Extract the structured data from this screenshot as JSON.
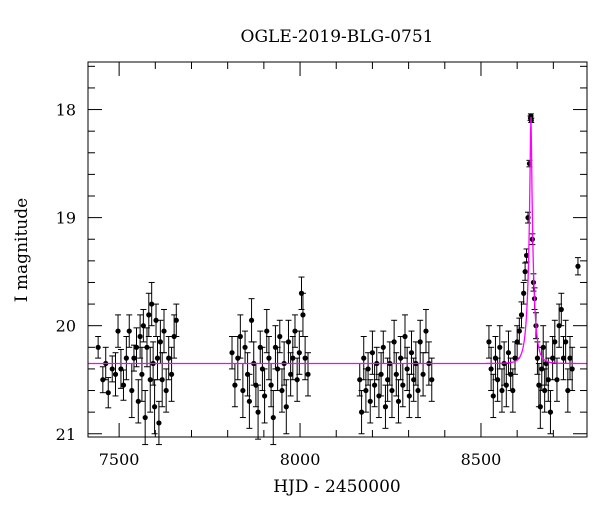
{
  "chart_data": {
    "type": "scatter",
    "title": "OGLE-2019-BLG-0751",
    "xlabel": "HJD - 2450000",
    "ylabel": "I magnitude",
    "xlim": [
      7414,
      8793
    ],
    "ylim": [
      21.03,
      17.56
    ],
    "y_inverted": true,
    "grid": false,
    "xticks": [
      7500,
      8000,
      8500
    ],
    "xticks_labels": [
      "7500",
      "8000",
      "8500"
    ],
    "yticks": [
      18,
      19,
      20,
      21
    ],
    "yticks_labels": [
      "18",
      "19",
      "20",
      "21"
    ],
    "x_minor_step": 100,
    "y_minor_step": 0.2,
    "colors": {
      "points": "#000000",
      "model": "#ff00ff"
    },
    "model": {
      "name": "microlensing fit",
      "t0": 8638,
      "u0": 0.122,
      "tE": 15,
      "baseline": 20.35
    },
    "points": [
      [
        7442,
        20.2,
        0.1
      ],
      [
        7455,
        20.5,
        0.12
      ],
      [
        7463,
        20.35,
        0.15
      ],
      [
        7470,
        20.62,
        0.14
      ],
      [
        7481,
        20.4,
        0.12
      ],
      [
        7490,
        20.45,
        0.2
      ],
      [
        7497,
        20.05,
        0.15
      ],
      [
        7505,
        20.4,
        0.18
      ],
      [
        7512,
        20.55,
        0.14
      ],
      [
        7520,
        20.3,
        0.2
      ],
      [
        7528,
        20.05,
        0.15
      ],
      [
        7535,
        20.6,
        0.25
      ],
      [
        7541,
        20.3,
        0.12
      ],
      [
        7548,
        20.2,
        0.18
      ],
      [
        7553,
        20.7,
        0.2
      ],
      [
        7558,
        20.1,
        0.2
      ],
      [
        7563,
        20.45,
        0.25
      ],
      [
        7567,
        20.0,
        0.15
      ],
      [
        7572,
        20.85,
        0.25
      ],
      [
        7577,
        20.2,
        0.18
      ],
      [
        7582,
        19.9,
        0.2
      ],
      [
        7586,
        20.5,
        0.3
      ],
      [
        7590,
        19.8,
        0.2
      ],
      [
        7594,
        20.35,
        0.2
      ],
      [
        7598,
        20.75,
        0.25
      ],
      [
        7602,
        19.95,
        0.15
      ],
      [
        7606,
        20.3,
        0.2
      ],
      [
        7610,
        20.9,
        0.2
      ],
      [
        7614,
        20.15,
        0.2
      ],
      [
        7619,
        20.5,
        0.25
      ],
      [
        7624,
        20.05,
        0.2
      ],
      [
        7630,
        20.6,
        0.2
      ],
      [
        7637,
        20.3,
        0.2
      ],
      [
        7645,
        20.45,
        0.25
      ],
      [
        7652,
        20.1,
        0.2
      ],
      [
        7658,
        19.95,
        0.15
      ],
      [
        7812,
        20.25,
        0.15
      ],
      [
        7820,
        20.55,
        0.2
      ],
      [
        7828,
        20.3,
        0.2
      ],
      [
        7835,
        20.1,
        0.2
      ],
      [
        7842,
        20.6,
        0.25
      ],
      [
        7848,
        20.2,
        0.15
      ],
      [
        7855,
        20.45,
        0.2
      ],
      [
        7860,
        20.7,
        0.25
      ],
      [
        7866,
        19.95,
        0.2
      ],
      [
        7872,
        20.35,
        0.2
      ],
      [
        7878,
        20.55,
        0.2
      ],
      [
        7884,
        20.8,
        0.25
      ],
      [
        7890,
        20.2,
        0.15
      ],
      [
        7896,
        20.4,
        0.2
      ],
      [
        7902,
        20.65,
        0.25
      ],
      [
        7908,
        20.05,
        0.2
      ],
      [
        7914,
        20.3,
        0.2
      ],
      [
        7920,
        20.55,
        0.2
      ],
      [
        7926,
        20.85,
        0.25
      ],
      [
        7932,
        20.2,
        0.2
      ],
      [
        7938,
        20.4,
        0.2
      ],
      [
        7944,
        20.1,
        0.15
      ],
      [
        7950,
        20.6,
        0.2
      ],
      [
        7956,
        20.35,
        0.2
      ],
      [
        7962,
        20.75,
        0.25
      ],
      [
        7968,
        20.15,
        0.2
      ],
      [
        7974,
        20.45,
        0.2
      ],
      [
        7980,
        20.3,
        0.2
      ],
      [
        7986,
        20.05,
        0.15
      ],
      [
        7992,
        20.5,
        0.2
      ],
      [
        7998,
        20.25,
        0.2
      ],
      [
        8004,
        19.7,
        0.15
      ],
      [
        8008,
        19.9,
        0.2
      ],
      [
        8014,
        20.3,
        0.2
      ],
      [
        8022,
        20.45,
        0.2
      ],
      [
        8165,
        20.5,
        0.15
      ],
      [
        8170,
        20.8,
        0.2
      ],
      [
        8176,
        20.3,
        0.2
      ],
      [
        8182,
        20.6,
        0.2
      ],
      [
        8188,
        20.4,
        0.15
      ],
      [
        8194,
        20.7,
        0.2
      ],
      [
        8200,
        20.25,
        0.2
      ],
      [
        8206,
        20.55,
        0.2
      ],
      [
        8212,
        20.35,
        0.15
      ],
      [
        8218,
        20.65,
        0.2
      ],
      [
        8224,
        20.45,
        0.2
      ],
      [
        8230,
        20.2,
        0.15
      ],
      [
        8236,
        20.75,
        0.2
      ],
      [
        8242,
        20.5,
        0.2
      ],
      [
        8248,
        20.35,
        0.2
      ],
      [
        8254,
        20.6,
        0.25
      ],
      [
        8260,
        20.15,
        0.2
      ],
      [
        8266,
        20.45,
        0.2
      ],
      [
        8272,
        20.7,
        0.2
      ],
      [
        8278,
        20.3,
        0.2
      ],
      [
        8284,
        20.55,
        0.2
      ],
      [
        8290,
        20.1,
        0.2
      ],
      [
        8296,
        20.4,
        0.2
      ],
      [
        8302,
        20.65,
        0.2
      ],
      [
        8308,
        20.25,
        0.2
      ],
      [
        8314,
        20.5,
        0.2
      ],
      [
        8320,
        20.35,
        0.2
      ],
      [
        8326,
        20.6,
        0.25
      ],
      [
        8332,
        20.15,
        0.2
      ],
      [
        8340,
        20.45,
        0.2
      ],
      [
        8348,
        20.05,
        0.2
      ],
      [
        8356,
        20.35,
        0.2
      ],
      [
        8364,
        20.5,
        0.2
      ],
      [
        8522,
        20.15,
        0.15
      ],
      [
        8528,
        20.4,
        0.2
      ],
      [
        8534,
        20.65,
        0.2
      ],
      [
        8540,
        20.3,
        0.2
      ],
      [
        8546,
        20.5,
        0.2
      ],
      [
        8552,
        20.2,
        0.2
      ],
      [
        8558,
        20.6,
        0.2
      ],
      [
        8564,
        20.35,
        0.2
      ],
      [
        8570,
        20.55,
        0.2
      ],
      [
        8576,
        20.25,
        0.2
      ],
      [
        8582,
        20.45,
        0.15
      ],
      [
        8588,
        20.6,
        0.2
      ],
      [
        8594,
        20.3,
        0.15
      ],
      [
        8600,
        20.15,
        0.15
      ],
      [
        8606,
        20.05,
        0.12
      ],
      [
        8612,
        19.9,
        0.12
      ],
      [
        8618,
        19.7,
        0.1
      ],
      [
        8622,
        19.5,
        0.08
      ],
      [
        8626,
        19.35,
        0.06
      ],
      [
        8630,
        19.0,
        0.05
      ],
      [
        8634,
        18.5,
        0.03
      ],
      [
        8637,
        18.08,
        0.02
      ],
      [
        8638,
        18.06,
        0.02
      ],
      [
        8639,
        18.1,
        0.02
      ],
      [
        8642,
        19.2,
        0.05
      ],
      [
        8645,
        19.6,
        0.08
      ],
      [
        8648,
        19.75,
        0.1
      ],
      [
        8652,
        20.0,
        0.12
      ],
      [
        8656,
        20.3,
        0.15
      ],
      [
        8660,
        20.55,
        0.2
      ],
      [
        8664,
        20.75,
        0.2
      ],
      [
        8668,
        20.4,
        0.2
      ],
      [
        8672,
        20.2,
        0.2
      ],
      [
        8676,
        20.6,
        0.2
      ],
      [
        8680,
        20.35,
        0.2
      ],
      [
        8686,
        20.5,
        0.2
      ],
      [
        8692,
        20.8,
        0.2
      ],
      [
        8698,
        20.3,
        0.2
      ],
      [
        8704,
        20.15,
        0.2
      ],
      [
        8710,
        20.5,
        0.2
      ],
      [
        8716,
        20.0,
        0.2
      ],
      [
        8722,
        19.85,
        0.15
      ],
      [
        8728,
        20.3,
        0.2
      ],
      [
        8734,
        20.15,
        0.2
      ],
      [
        8740,
        20.6,
        0.2
      ],
      [
        8746,
        20.3,
        0.2
      ],
      [
        8752,
        20.4,
        0.2
      ],
      [
        8768,
        19.45,
        0.08
      ]
    ]
  }
}
